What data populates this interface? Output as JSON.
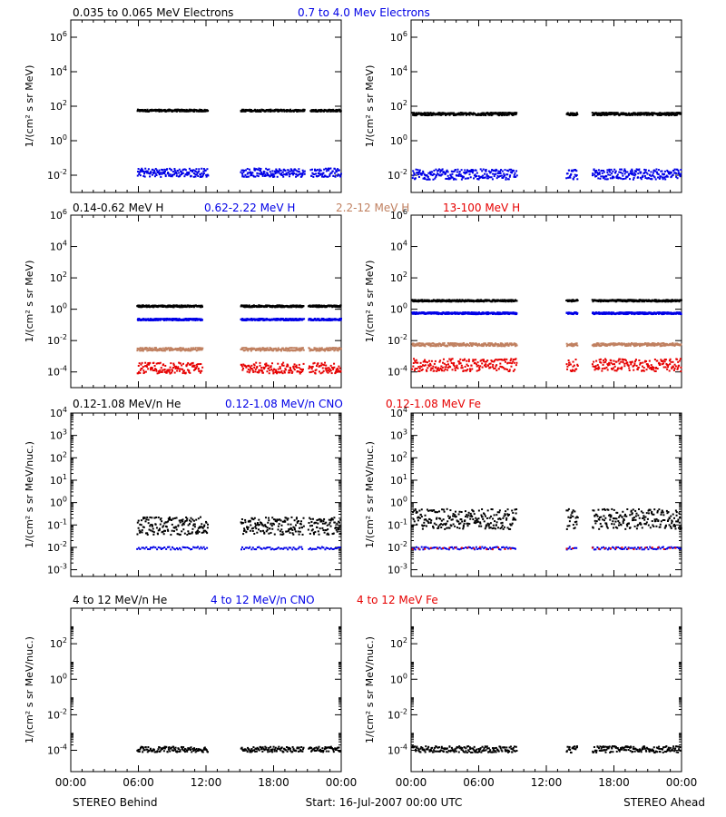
{
  "footer": {
    "left": "STEREO Behind",
    "center": "Start: 16-Jul-2007 00:00 UTC",
    "right": "STEREO Ahead"
  },
  "x_ticks": [
    "00:00",
    "06:00",
    "12:00",
    "18:00",
    "00:00"
  ],
  "colors": {
    "black": "#000000",
    "blue": "#0000e6",
    "tan": "#c08060",
    "red": "#e60000"
  },
  "chart_data": [
    {
      "type": "scatter",
      "title_left": "0.035 to 0.065 MeV Electrons",
      "title_right": "0.7 to 4.0 Mev Electrons",
      "ylabel": "1/(cm² s sr MeV)",
      "yscale": "log",
      "ylim": [
        -3,
        7
      ],
      "yticks": [
        -2,
        0,
        2,
        4,
        6
      ],
      "behind": {
        "segments": [
          [
            5.8,
            12.1
          ],
          [
            15.0,
            20.7
          ],
          [
            21.2,
            23.9
          ]
        ],
        "series": [
          {
            "name": "0.035 to 0.065 MeV Electrons",
            "color": "black",
            "level": 1.8,
            "jitter": 0.06,
            "density": 2.5
          },
          {
            "name": "0.7 to 4.0 Mev Electrons",
            "color": "blue",
            "level": -1.8,
            "jitter": 0.25,
            "density": 2.0
          }
        ]
      },
      "ahead": {
        "segments": [
          [
            0.0,
            9.3
          ],
          [
            13.7,
            14.7
          ],
          [
            16.0,
            23.9
          ]
        ],
        "series": [
          {
            "name": "0.035 to 0.065 MeV Electrons",
            "color": "black",
            "level": 1.6,
            "jitter": 0.08,
            "density": 2.5
          },
          {
            "name": "0.7 to 4.0 Mev Electrons",
            "color": "blue",
            "level": -1.9,
            "jitter": 0.3,
            "density": 2.0
          }
        ]
      }
    },
    {
      "type": "scatter",
      "titles": [
        {
          "text": "0.14-0.62 MeV H",
          "color": "black"
        },
        {
          "text": "0.62-2.22 MeV H",
          "color": "blue"
        },
        {
          "text": "2.2-12 MeV H",
          "color": "tan"
        },
        {
          "text": "13-100 MeV H",
          "color": "red"
        }
      ],
      "ylabel": "1/(cm² s sr MeV)",
      "yscale": "log",
      "ylim": [
        -5,
        6
      ],
      "yticks": [
        -4,
        -2,
        0,
        2,
        4,
        6
      ],
      "behind": {
        "segments": [
          [
            5.8,
            11.6
          ],
          [
            15.0,
            20.6
          ],
          [
            21.0,
            23.9
          ]
        ],
        "series": [
          {
            "name": "0.14-0.62 MeV H",
            "color": "black",
            "level": 0.25,
            "jitter": 0.06,
            "density": 2.5
          },
          {
            "name": "0.62-2.22 MeV H",
            "color": "blue",
            "level": -0.6,
            "jitter": 0.06,
            "density": 2.5
          },
          {
            "name": "2.2-12 MeV H",
            "color": "tan",
            "level": -2.5,
            "jitter": 0.1,
            "density": 2.0
          },
          {
            "name": "13-100 MeV H",
            "color": "red",
            "level": -3.7,
            "jitter": 0.35,
            "density": 1.8
          }
        ]
      },
      "ahead": {
        "segments": [
          [
            0.0,
            9.3
          ],
          [
            13.7,
            14.7
          ],
          [
            16.0,
            23.9
          ]
        ],
        "series": [
          {
            "name": "0.14-0.62 MeV H",
            "color": "black",
            "level": 0.6,
            "jitter": 0.06,
            "density": 2.5
          },
          {
            "name": "0.62-2.22 MeV H",
            "color": "blue",
            "level": -0.2,
            "jitter": 0.06,
            "density": 2.5
          },
          {
            "name": "2.2-12 MeV H",
            "color": "tan",
            "level": -2.2,
            "jitter": 0.1,
            "density": 2.0
          },
          {
            "name": "13-100 MeV H",
            "color": "red",
            "level": -3.5,
            "jitter": 0.4,
            "density": 1.8
          }
        ]
      }
    },
    {
      "type": "scatter",
      "titles": [
        {
          "text": "0.12-1.08 MeV/n He",
          "color": "black"
        },
        {
          "text": "0.12-1.08 MeV/n CNO",
          "color": "blue"
        },
        {
          "text": "0.12-1.08 MeV Fe",
          "color": "red"
        }
      ],
      "ylabel": "1/(cm² s sr MeV/nuc.)",
      "yscale": "log",
      "ylim": [
        -3.3,
        4
      ],
      "yticks": [
        -3,
        -2,
        -1,
        0,
        1,
        2,
        3,
        4
      ],
      "behind": {
        "segments": [
          [
            5.8,
            12.1
          ],
          [
            15.0,
            20.6
          ],
          [
            21.0,
            23.9
          ]
        ],
        "series": [
          {
            "name": "0.12-1.08 MeV/n He",
            "color": "black",
            "level": -1.0,
            "jitter": 0.4,
            "density": 2.0
          },
          {
            "name": "0.12-1.08 MeV/n CNO",
            "color": "blue",
            "level": -2.0,
            "jitter": 0.06,
            "density": 0.6
          }
        ]
      },
      "ahead": {
        "segments": [
          [
            0.0,
            9.3
          ],
          [
            13.7,
            14.7
          ],
          [
            16.0,
            23.9
          ]
        ],
        "series": [
          {
            "name": "0.12-1.08 MeV/n He",
            "color": "black",
            "level": -0.7,
            "jitter": 0.45,
            "density": 2.0
          },
          {
            "name": "0.12-1.08 MeV/n CNO",
            "color": "blue",
            "level": -2.0,
            "jitter": 0.06,
            "density": 0.6
          },
          {
            "name": "0.12-1.08 MeV Fe",
            "color": "red",
            "level": -2.0,
            "jitter": 0.05,
            "density": 0.15
          }
        ]
      }
    },
    {
      "type": "scatter",
      "titles": [
        {
          "text": "4 to 12 MeV/n He",
          "color": "black"
        },
        {
          "text": "4 to 12 MeV/n CNO",
          "color": "blue"
        },
        {
          "text": "4 to 12 MeV Fe",
          "color": "red"
        }
      ],
      "ylabel": "1/(cm² s sr MeV/nuc.)",
      "yscale": "log",
      "ylim": [
        -5.2,
        4
      ],
      "yticks": [
        -4,
        -2,
        0,
        2
      ],
      "behind": {
        "segments": [
          [
            5.8,
            12.1
          ],
          [
            15.0,
            20.6
          ],
          [
            21.0,
            23.9
          ]
        ],
        "series": [
          {
            "name": "4 to 12 MeV/n He",
            "color": "black",
            "level": -3.9,
            "jitter": 0.15,
            "density": 1.5
          }
        ]
      },
      "ahead": {
        "segments": [
          [
            0.0,
            9.3
          ],
          [
            13.7,
            14.7
          ],
          [
            16.0,
            23.9
          ]
        ],
        "series": [
          {
            "name": "4 to 12 MeV/n He",
            "color": "black",
            "level": -3.9,
            "jitter": 0.18,
            "density": 1.5
          }
        ]
      }
    }
  ]
}
